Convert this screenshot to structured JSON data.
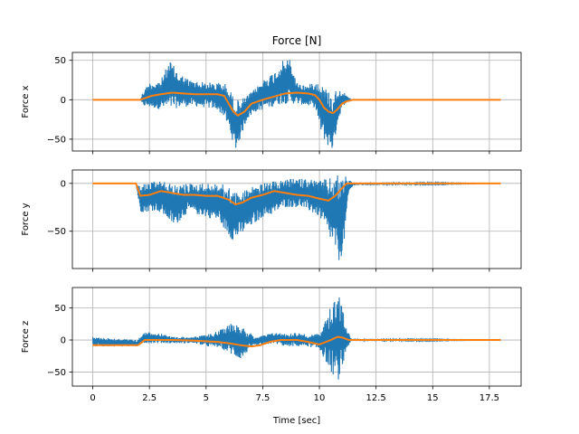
{
  "chart_data": [
    {
      "type": "line",
      "title": "Force [N]",
      "xlabel": "",
      "ylabel": "Force x",
      "xlim": [
        -0.9,
        18.9
      ],
      "ylim": [
        -65,
        60
      ],
      "xticks": [
        0,
        2.5,
        5,
        7.5,
        10,
        12.5,
        15,
        17.5
      ],
      "yticks": [
        -50,
        0,
        50
      ],
      "grid": true,
      "series": [
        {
          "kind": "raw-envelope",
          "color": "#1f77b4",
          "x": [
            0,
            2.1,
            2.2,
            2.5,
            3.0,
            3.4,
            3.8,
            4.3,
            5.0,
            5.5,
            5.8,
            6.1,
            6.3,
            6.5,
            6.8,
            7.2,
            7.6,
            8.0,
            8.4,
            8.7,
            9.0,
            9.5,
            9.8,
            10.1,
            10.4,
            10.6,
            10.8,
            11.0,
            11.2,
            11.4,
            18
          ],
          "min": [
            0,
            0,
            -8,
            -10,
            -12,
            -13,
            -10,
            -8,
            -10,
            -13,
            -22,
            -45,
            -65,
            -50,
            -25,
            -15,
            -12,
            -8,
            -5,
            -5,
            -5,
            -8,
            -10,
            -45,
            -60,
            -65,
            -30,
            -10,
            -3,
            0,
            0
          ],
          "max": [
            0,
            0,
            10,
            22,
            25,
            50,
            34,
            25,
            22,
            22,
            22,
            10,
            0,
            0,
            5,
            15,
            28,
            35,
            50,
            52,
            22,
            18,
            25,
            20,
            12,
            8,
            15,
            12,
            5,
            0,
            0
          ]
        },
        {
          "kind": "smoothed",
          "color": "#ff7f0e",
          "x": [
            0,
            2.1,
            2.3,
            2.6,
            3.0,
            3.5,
            4.0,
            4.5,
            5.0,
            5.5,
            5.8,
            6.0,
            6.2,
            6.4,
            6.7,
            7.0,
            7.5,
            8.0,
            8.5,
            9.0,
            9.5,
            9.8,
            10.0,
            10.2,
            10.4,
            10.6,
            10.8,
            11.0,
            11.2,
            11.5,
            18
          ],
          "y": [
            0,
            0,
            2,
            5,
            7,
            9,
            8,
            7,
            7,
            7,
            5,
            -5,
            -15,
            -20,
            -15,
            -5,
            0,
            4,
            8,
            9,
            8,
            6,
            0,
            -10,
            -15,
            -17,
            -12,
            -5,
            -2,
            0,
            0
          ]
        }
      ]
    },
    {
      "type": "line",
      "title": "",
      "xlabel": "",
      "ylabel": "Force y",
      "xlim": [
        -0.9,
        18.9
      ],
      "ylim": [
        -89,
        14
      ],
      "xticks": [
        0,
        2.5,
        5,
        7.5,
        10,
        12.5,
        15,
        17.5
      ],
      "yticks": [
        -50,
        0
      ],
      "grid": true,
      "series": [
        {
          "kind": "raw-envelope",
          "color": "#1f77b4",
          "x": [
            0,
            1.9,
            2.1,
            2.3,
            2.8,
            3.2,
            3.6,
            4.2,
            5.0,
            5.6,
            6.0,
            6.2,
            6.5,
            7.0,
            7.5,
            8.0,
            8.4,
            8.8,
            9.2,
            9.6,
            10.0,
            10.4,
            10.7,
            10.9,
            11.1,
            11.3,
            11.5,
            18
          ],
          "min": [
            0,
            0,
            -30,
            -30,
            -28,
            -35,
            -45,
            -30,
            -35,
            -40,
            -55,
            -60,
            -55,
            -45,
            -35,
            -32,
            -25,
            -25,
            -25,
            -30,
            -35,
            -55,
            -70,
            -85,
            -60,
            -10,
            -2,
            0
          ],
          "max": [
            0,
            0,
            -2,
            0,
            2,
            2,
            -2,
            0,
            0,
            0,
            -3,
            -8,
            -10,
            -3,
            0,
            2,
            3,
            5,
            5,
            5,
            3,
            5,
            8,
            10,
            10,
            5,
            1,
            0
          ]
        },
        {
          "kind": "smoothed",
          "color": "#ff7f0e",
          "x": [
            0,
            1.9,
            2.1,
            2.5,
            3.0,
            3.5,
            4.0,
            4.5,
            5.0,
            5.5,
            6.0,
            6.3,
            6.6,
            7.0,
            7.5,
            8.0,
            8.5,
            9.0,
            9.5,
            10.0,
            10.4,
            10.7,
            11.0,
            11.2,
            11.4,
            18
          ],
          "y": [
            0,
            0,
            -13,
            -12,
            -8,
            -10,
            -12,
            -12,
            -13,
            -13,
            -17,
            -22,
            -20,
            -15,
            -12,
            -8,
            -10,
            -12,
            -13,
            -16,
            -18,
            -13,
            -5,
            0,
            0,
            0
          ]
        }
      ]
    },
    {
      "type": "line",
      "title": "",
      "xlabel": "Time [sec]",
      "ylabel": "Force z",
      "xlim": [
        -0.9,
        18.9
      ],
      "ylim": [
        -72,
        82
      ],
      "xticks": [
        0,
        2.5,
        5,
        7.5,
        10,
        12.5,
        15,
        17.5
      ],
      "yticks": [
        -50,
        0,
        50
      ],
      "grid": true,
      "series": [
        {
          "kind": "raw-envelope",
          "color": "#1f77b4",
          "x": [
            0,
            2.0,
            2.2,
            2.8,
            3.5,
            4.5,
            5.0,
            5.6,
            6.0,
            6.3,
            6.6,
            6.9,
            7.2,
            7.6,
            8.0,
            8.5,
            9.0,
            9.5,
            10.0,
            10.3,
            10.6,
            10.8,
            11.0,
            11.2,
            11.4,
            18
          ],
          "min": [
            -10,
            -10,
            -5,
            -5,
            -5,
            -5,
            -10,
            -12,
            -20,
            -28,
            -30,
            -15,
            -10,
            -8,
            -5,
            -10,
            -10,
            -10,
            -15,
            -35,
            -55,
            -65,
            -50,
            -15,
            -2,
            0
          ],
          "max": [
            5,
            0,
            12,
            12,
            5,
            5,
            8,
            15,
            25,
            30,
            22,
            12,
            5,
            8,
            12,
            10,
            12,
            8,
            10,
            35,
            60,
            75,
            55,
            25,
            2,
            0
          ]
        },
        {
          "kind": "smoothed",
          "color": "#ff7f0e",
          "x": [
            0,
            2.0,
            2.3,
            2.8,
            3.5,
            4.5,
            5.0,
            5.5,
            6.0,
            6.5,
            7.0,
            7.4,
            7.8,
            8.3,
            9.0,
            9.5,
            10.0,
            10.5,
            10.8,
            11.0,
            11.3,
            11.6,
            18
          ],
          "y": [
            -8,
            -8,
            0,
            0,
            0,
            -1,
            -2,
            -3,
            -5,
            -8,
            -10,
            -8,
            -3,
            0,
            0,
            -3,
            -7,
            0,
            5,
            4,
            0,
            0,
            0
          ]
        }
      ]
    }
  ]
}
